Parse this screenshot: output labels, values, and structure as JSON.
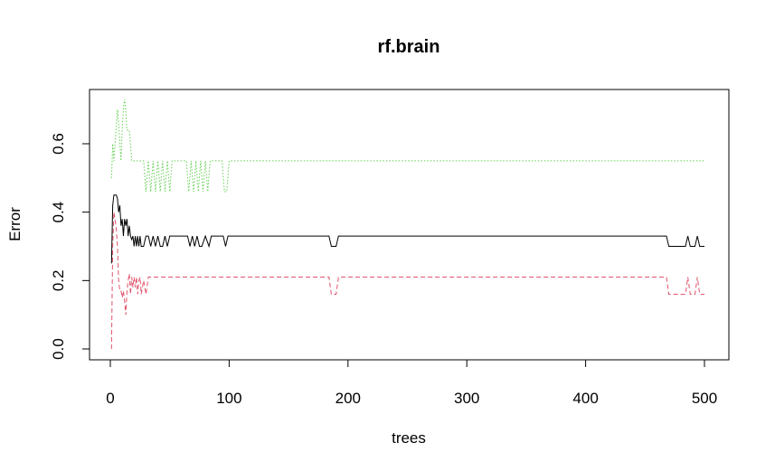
{
  "chart_data": {
    "type": "line",
    "title": "rf.brain",
    "xlabel": "trees",
    "ylabel": "Error",
    "xlim": [
      0,
      500
    ],
    "ylim": [
      0,
      0.73
    ],
    "xticks": [
      "0",
      "100",
      "200",
      "300",
      "400",
      "500"
    ],
    "yticks": [
      "0.0",
      "0.2",
      "0.4",
      "0.6"
    ],
    "xtick_values": [
      0,
      100,
      200,
      300,
      400,
      500
    ],
    "ytick_values": [
      0,
      0.2,
      0.4,
      0.6
    ],
    "grid": false,
    "series": [
      {
        "color": "#000000",
        "dash": "solid",
        "points": [
          [
            1,
            0.25
          ],
          [
            2,
            0.42
          ],
          [
            3,
            0.45
          ],
          [
            4,
            0.45
          ],
          [
            5,
            0.45
          ],
          [
            6,
            0.44
          ],
          [
            7,
            0.4
          ],
          [
            8,
            0.42
          ],
          [
            9,
            0.36
          ],
          [
            10,
            0.38
          ],
          [
            11,
            0.33
          ],
          [
            12,
            0.38
          ],
          [
            13,
            0.36
          ],
          [
            14,
            0.38
          ],
          [
            15,
            0.33
          ],
          [
            16,
            0.36
          ],
          [
            17,
            0.33
          ],
          [
            18,
            0.32
          ],
          [
            19,
            0.33
          ],
          [
            20,
            0.3
          ],
          [
            21,
            0.33
          ],
          [
            22,
            0.3
          ],
          [
            23,
            0.33
          ],
          [
            24,
            0.3
          ],
          [
            25,
            0.33
          ],
          [
            26,
            0.3
          ],
          [
            28,
            0.3
          ],
          [
            30,
            0.33
          ],
          [
            32,
            0.33
          ],
          [
            34,
            0.3
          ],
          [
            36,
            0.33
          ],
          [
            38,
            0.3
          ],
          [
            40,
            0.33
          ],
          [
            42,
            0.3
          ],
          [
            44,
            0.3
          ],
          [
            46,
            0.33
          ],
          [
            48,
            0.3
          ],
          [
            50,
            0.33
          ],
          [
            55,
            0.33
          ],
          [
            65,
            0.33
          ],
          [
            67,
            0.3
          ],
          [
            69,
            0.33
          ],
          [
            71,
            0.3
          ],
          [
            73,
            0.33
          ],
          [
            75,
            0.3
          ],
          [
            77,
            0.3
          ],
          [
            80,
            0.33
          ],
          [
            83,
            0.3
          ],
          [
            85,
            0.33
          ],
          [
            95,
            0.33
          ],
          [
            97,
            0.3
          ],
          [
            99,
            0.33
          ],
          [
            184,
            0.33
          ],
          [
            186,
            0.3
          ],
          [
            190,
            0.3
          ],
          [
            192,
            0.33
          ],
          [
            468,
            0.33
          ],
          [
            470,
            0.3
          ],
          [
            484,
            0.3
          ],
          [
            486,
            0.33
          ],
          [
            488,
            0.3
          ],
          [
            492,
            0.3
          ],
          [
            494,
            0.33
          ],
          [
            496,
            0.3
          ],
          [
            500,
            0.3
          ]
        ]
      },
      {
        "color": "#DF536B",
        "dash": "dashed",
        "points": [
          [
            1,
            0.0
          ],
          [
            2,
            0.3
          ],
          [
            3,
            0.4
          ],
          [
            4,
            0.38
          ],
          [
            5,
            0.35
          ],
          [
            6,
            0.3
          ],
          [
            7,
            0.2
          ],
          [
            8,
            0.17
          ],
          [
            9,
            0.17
          ],
          [
            10,
            0.15
          ],
          [
            11,
            0.17
          ],
          [
            12,
            0.14
          ],
          [
            13,
            0.1
          ],
          [
            14,
            0.17
          ],
          [
            15,
            0.2
          ],
          [
            16,
            0.22
          ],
          [
            17,
            0.16
          ],
          [
            18,
            0.21
          ],
          [
            19,
            0.18
          ],
          [
            20,
            0.21
          ],
          [
            21,
            0.18
          ],
          [
            22,
            0.21
          ],
          [
            23,
            0.16
          ],
          [
            24,
            0.2
          ],
          [
            25,
            0.21
          ],
          [
            26,
            0.16
          ],
          [
            28,
            0.2
          ],
          [
            30,
            0.16
          ],
          [
            32,
            0.21
          ],
          [
            40,
            0.21
          ],
          [
            100,
            0.21
          ],
          [
            184,
            0.21
          ],
          [
            186,
            0.16
          ],
          [
            190,
            0.16
          ],
          [
            192,
            0.21
          ],
          [
            468,
            0.21
          ],
          [
            470,
            0.16
          ],
          [
            484,
            0.16
          ],
          [
            486,
            0.21
          ],
          [
            488,
            0.16
          ],
          [
            492,
            0.16
          ],
          [
            494,
            0.21
          ],
          [
            496,
            0.16
          ],
          [
            500,
            0.16
          ]
        ]
      },
      {
        "color": "#61D04F",
        "dash": "dotted",
        "points": [
          [
            1,
            0.5
          ],
          [
            2,
            0.6
          ],
          [
            3,
            0.55
          ],
          [
            4,
            0.6
          ],
          [
            5,
            0.65
          ],
          [
            6,
            0.7
          ],
          [
            7,
            0.66
          ],
          [
            8,
            0.6
          ],
          [
            9,
            0.55
          ],
          [
            10,
            0.64
          ],
          [
            11,
            0.7
          ],
          [
            12,
            0.73
          ],
          [
            13,
            0.7
          ],
          [
            14,
            0.64
          ],
          [
            15,
            0.64
          ],
          [
            16,
            0.64
          ],
          [
            17,
            0.6
          ],
          [
            18,
            0.55
          ],
          [
            19,
            0.55
          ],
          [
            20,
            0.55
          ],
          [
            28,
            0.55
          ],
          [
            30,
            0.46
          ],
          [
            32,
            0.55
          ],
          [
            34,
            0.46
          ],
          [
            36,
            0.55
          ],
          [
            38,
            0.46
          ],
          [
            40,
            0.55
          ],
          [
            42,
            0.46
          ],
          [
            44,
            0.55
          ],
          [
            46,
            0.46
          ],
          [
            48,
            0.55
          ],
          [
            50,
            0.46
          ],
          [
            52,
            0.55
          ],
          [
            64,
            0.55
          ],
          [
            66,
            0.46
          ],
          [
            68,
            0.55
          ],
          [
            70,
            0.46
          ],
          [
            72,
            0.55
          ],
          [
            74,
            0.46
          ],
          [
            76,
            0.55
          ],
          [
            78,
            0.46
          ],
          [
            80,
            0.55
          ],
          [
            82,
            0.46
          ],
          [
            84,
            0.55
          ],
          [
            94,
            0.55
          ],
          [
            96,
            0.46
          ],
          [
            98,
            0.46
          ],
          [
            100,
            0.55
          ],
          [
            500,
            0.55
          ]
        ]
      }
    ]
  }
}
